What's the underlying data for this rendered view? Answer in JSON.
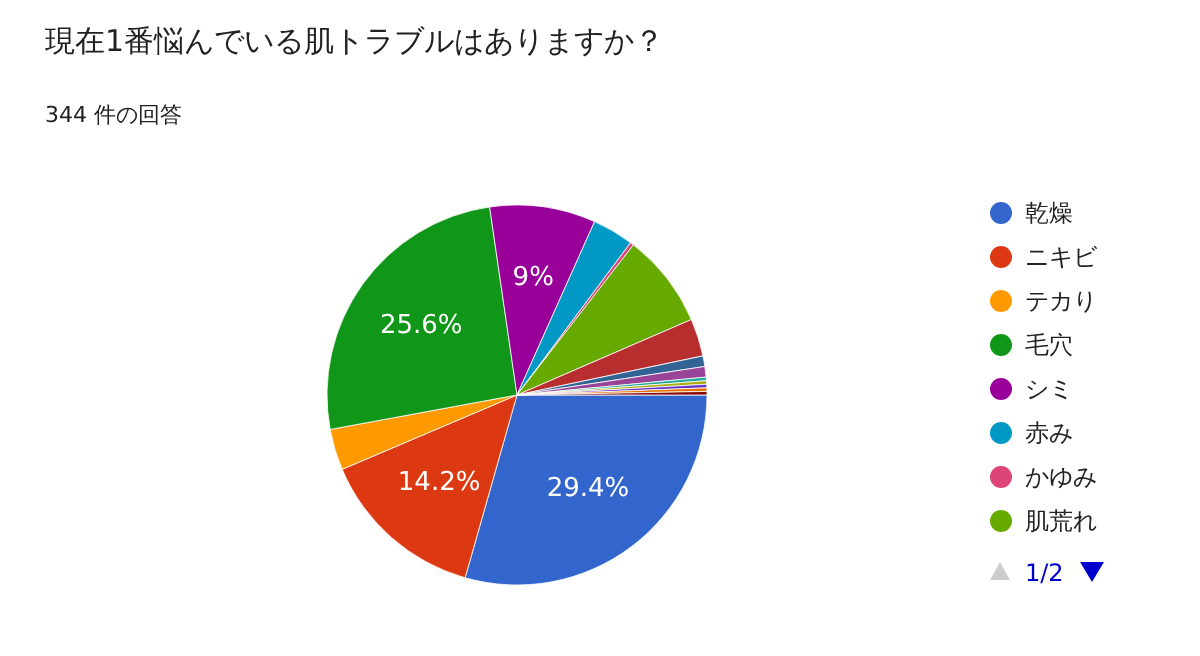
{
  "chart_data": {
    "type": "pie",
    "title": "現在1番悩んでいる肌トラブルはありますか？",
    "subtitle": "344 件の回答",
    "categories": [
      "乾燥",
      "ニキビ",
      "テカり",
      "毛穴",
      "シミ",
      "赤み",
      "かゆみ",
      "肌荒れ",
      null,
      null,
      null,
      null,
      null,
      null,
      null,
      null
    ],
    "values": [
      29.4,
      14.2,
      3.5,
      25.6,
      9,
      3.5,
      0.3,
      8,
      3.2,
      0.9,
      0.9,
      0.3,
      0.3,
      0.3,
      0.3,
      0.3
    ],
    "colors": [
      "#3366cc",
      "#dc3912",
      "#ff9900",
      "#109618",
      "#990099",
      "#0099c6",
      "#dd4477",
      "#66aa00",
      "#b82e2e",
      "#316395",
      "#994499",
      "#22aa99",
      "#aaaa11",
      "#6633cc",
      "#e67300",
      "#8b0707"
    ],
    "value_labels": [
      "29.4%",
      "14.2%",
      null,
      "25.6%",
      "9%",
      null,
      null,
      null,
      null,
      null,
      null,
      null,
      null,
      null,
      null,
      null
    ],
    "legend": "right",
    "annotations": [
      "1/2"
    ]
  }
}
